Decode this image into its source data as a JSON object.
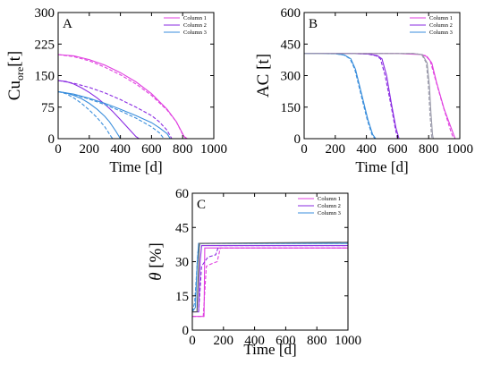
{
  "chart_data": [
    {
      "panel": "A",
      "type": "line",
      "xlabel": "Time [d]",
      "ylabel_main": "Cu",
      "ylabel_sub": "ore",
      "ylabel_unit": "[t]",
      "xlim": [
        0,
        1000
      ],
      "ylim": [
        0,
        300
      ],
      "xticks": [
        "0",
        "200",
        "400",
        "600",
        "800",
        "1000"
      ],
      "yticks": [
        "0",
        "75",
        "150",
        "225",
        "300"
      ],
      "legend_position": "top-right",
      "series": [
        {
          "name": "Column 1",
          "color": "#e040e0",
          "style": "solid",
          "points": [
            [
              0,
              200
            ],
            [
              100,
              197
            ],
            [
              200,
              188
            ],
            [
              300,
              175
            ],
            [
              400,
              157
            ],
            [
              500,
              135
            ],
            [
              600,
              107
            ],
            [
              700,
              70
            ],
            [
              760,
              40
            ],
            [
              810,
              5
            ],
            [
              830,
              0
            ],
            [
              1000,
              0
            ]
          ]
        },
        {
          "name": "Column 1",
          "color": "#e040e0",
          "style": "dashed",
          "points": [
            [
              0,
              200
            ],
            [
              100,
              195
            ],
            [
              200,
              185
            ],
            [
              300,
              170
            ],
            [
              400,
              152
            ],
            [
              500,
              130
            ],
            [
              600,
              103
            ],
            [
              700,
              68
            ],
            [
              760,
              40
            ],
            [
              800,
              10
            ],
            [
              820,
              0
            ],
            [
              1000,
              0
            ]
          ]
        },
        {
          "name": "Column 2",
          "color": "#8a2be2",
          "style": "solid",
          "points": [
            [
              0,
              138
            ],
            [
              50,
              136
            ],
            [
              100,
              130
            ],
            [
              150,
              121
            ],
            [
              200,
              110
            ],
            [
              250,
              97
            ],
            [
              300,
              82
            ],
            [
              350,
              65
            ],
            [
              400,
              45
            ],
            [
              450,
              25
            ],
            [
              500,
              5
            ],
            [
              520,
              0
            ],
            [
              1000,
              0
            ]
          ]
        },
        {
          "name": "Column 2",
          "color": "#8a2be2",
          "style": "dashed",
          "points": [
            [
              0,
              138
            ],
            [
              100,
              132
            ],
            [
              200,
              122
            ],
            [
              300,
              109
            ],
            [
              400,
              93
            ],
            [
              500,
              75
            ],
            [
              600,
              55
            ],
            [
              650,
              40
            ],
            [
              700,
              20
            ],
            [
              730,
              0
            ],
            [
              1000,
              0
            ]
          ]
        },
        {
          "name": "Column 3",
          "color": "#3a8edc",
          "style": "solid",
          "points": [
            [
              0,
              112
            ],
            [
              50,
              109
            ],
            [
              100,
              103
            ],
            [
              150,
              95
            ],
            [
              200,
              84
            ],
            [
              250,
              70
            ],
            [
              300,
              53
            ],
            [
              330,
              40
            ],
            [
              370,
              18
            ],
            [
              400,
              0
            ],
            [
              1000,
              0
            ]
          ]
        },
        {
          "name": "Column 3",
          "color": "#3a8edc",
          "style": "dashed",
          "points": [
            [
              0,
              112
            ],
            [
              50,
              107
            ],
            [
              100,
              97
            ],
            [
              150,
              84
            ],
            [
              200,
              68
            ],
            [
              250,
              50
            ],
            [
              300,
              28
            ],
            [
              340,
              5
            ],
            [
              350,
              0
            ],
            [
              1000,
              0
            ]
          ]
        },
        {
          "name": "Column 3",
          "color": "#3a8edc",
          "style": "solid",
          "points": [
            [
              0,
              112
            ],
            [
              100,
              106
            ],
            [
              200,
              96
            ],
            [
              300,
              84
            ],
            [
              400,
              70
            ],
            [
              500,
              55
            ],
            [
              600,
              38
            ],
            [
              650,
              26
            ],
            [
              700,
              12
            ],
            [
              720,
              0
            ],
            [
              1000,
              0
            ]
          ]
        },
        {
          "name": "Column 3",
          "color": "#3a8edc",
          "style": "dashed",
          "points": [
            [
              0,
              112
            ],
            [
              100,
              105
            ],
            [
              200,
              94
            ],
            [
              300,
              81
            ],
            [
              400,
              66
            ],
            [
              500,
              49
            ],
            [
              600,
              28
            ],
            [
              650,
              14
            ],
            [
              680,
              0
            ],
            [
              1000,
              0
            ]
          ]
        }
      ]
    },
    {
      "panel": "B",
      "type": "line",
      "xlabel": "Time [d]",
      "ylabel_main": "AC",
      "ylabel_sub": "",
      "ylabel_unit": "[t]",
      "xlim": [
        0,
        1000
      ],
      "ylim": [
        0,
        600
      ],
      "xticks": [
        "0",
        "200",
        "400",
        "600",
        "800",
        "1000"
      ],
      "yticks": [
        "0",
        "150",
        "300",
        "450",
        "600"
      ],
      "legend_position": "top-right",
      "series": [
        {
          "name": "Column 1",
          "color": "#e040e0",
          "style": "solid",
          "points": [
            [
              0,
              405
            ],
            [
              600,
              405
            ],
            [
              750,
              400
            ],
            [
              790,
              390
            ],
            [
              820,
              360
            ],
            [
              850,
              270
            ],
            [
              900,
              140
            ],
            [
              950,
              40
            ],
            [
              970,
              0
            ],
            [
              1000,
              0
            ]
          ]
        },
        {
          "name": "Column 1",
          "color": "#e040e0",
          "style": "dashed",
          "points": [
            [
              0,
              405
            ],
            [
              600,
              405
            ],
            [
              740,
              402
            ],
            [
              780,
              395
            ],
            [
              810,
              370
            ],
            [
              840,
              290
            ],
            [
              890,
              160
            ],
            [
              940,
              40
            ],
            [
              960,
              0
            ],
            [
              1000,
              0
            ]
          ]
        },
        {
          "name": "Column 2",
          "color": "#8a2be2",
          "style": "solid",
          "points": [
            [
              0,
              405
            ],
            [
              300,
              405
            ],
            [
              420,
              402
            ],
            [
              470,
              395
            ],
            [
              500,
              380
            ],
            [
              530,
              300
            ],
            [
              560,
              170
            ],
            [
              590,
              50
            ],
            [
              610,
              0
            ],
            [
              1000,
              0
            ]
          ]
        },
        {
          "name": "Column 2",
          "color": "#8a2be2",
          "style": "dashed",
          "points": [
            [
              0,
              405
            ],
            [
              300,
              405
            ],
            [
              410,
              402
            ],
            [
              460,
              395
            ],
            [
              490,
              380
            ],
            [
              520,
              300
            ],
            [
              555,
              170
            ],
            [
              585,
              50
            ],
            [
              600,
              0
            ],
            [
              1000,
              0
            ]
          ]
        },
        {
          "name": "Column 3",
          "color": "#3a8edc",
          "style": "solid",
          "points": [
            [
              0,
              405
            ],
            [
              200,
              404
            ],
            [
              260,
              398
            ],
            [
              300,
              380
            ],
            [
              330,
              330
            ],
            [
              370,
              210
            ],
            [
              410,
              90
            ],
            [
              440,
              20
            ],
            [
              460,
              0
            ],
            [
              1000,
              0
            ]
          ]
        },
        {
          "name": "Column 3",
          "color": "#3a8edc",
          "style": "dashed",
          "points": [
            [
              0,
              405
            ],
            [
              200,
              404
            ],
            [
              255,
              398
            ],
            [
              295,
              380
            ],
            [
              325,
              330
            ],
            [
              365,
              210
            ],
            [
              405,
              90
            ],
            [
              435,
              20
            ],
            [
              455,
              0
            ],
            [
              1000,
              0
            ]
          ]
        },
        {
          "name": "Column 3",
          "color": "#9a9aaa",
          "style": "solid",
          "points": [
            [
              0,
              405
            ],
            [
              700,
              405
            ],
            [
              760,
              400
            ],
            [
              790,
              360
            ],
            [
              805,
              250
            ],
            [
              815,
              120
            ],
            [
              825,
              20
            ],
            [
              830,
              0
            ],
            [
              1000,
              0
            ]
          ]
        },
        {
          "name": "Column 3",
          "color": "#9a9aaa",
          "style": "dashed",
          "points": [
            [
              0,
              405
            ],
            [
              700,
              405
            ],
            [
              755,
              400
            ],
            [
              785,
              360
            ],
            [
              798,
              250
            ],
            [
              808,
              120
            ],
            [
              818,
              20
            ],
            [
              822,
              0
            ],
            [
              1000,
              0
            ]
          ]
        }
      ]
    },
    {
      "panel": "C",
      "type": "line",
      "xlabel": "Time [d]",
      "ylabel_main": "θ",
      "ylabel_sub": "",
      "ylabel_unit": "[%]",
      "xlim": [
        0,
        1000
      ],
      "ylim": [
        0,
        60
      ],
      "xticks": [
        "0",
        "200",
        "400",
        "600",
        "800",
        "1000"
      ],
      "yticks": [
        "0",
        "15",
        "30",
        "45",
        "60"
      ],
      "legend_position": "top-right",
      "series": [
        {
          "name": "Column 1",
          "color": "#e040e0",
          "style": "solid",
          "points": [
            [
              0,
              6
            ],
            [
              75,
              6
            ],
            [
              80,
              36
            ],
            [
              1000,
              36
            ]
          ]
        },
        {
          "name": "Column 1",
          "color": "#e040e0",
          "style": "dashed",
          "points": [
            [
              0,
              6
            ],
            [
              70,
              6
            ],
            [
              90,
              28
            ],
            [
              120,
              29
            ],
            [
              160,
              30
            ],
            [
              180,
              36
            ],
            [
              1000,
              36
            ]
          ]
        },
        {
          "name": "Column 2",
          "color": "#8a2be2",
          "style": "solid",
          "points": [
            [
              0,
              8
            ],
            [
              40,
              8
            ],
            [
              50,
              30
            ],
            [
              60,
              37
            ],
            [
              1000,
              37
            ]
          ]
        },
        {
          "name": "Column 2",
          "color": "#8a2be2",
          "style": "dashed",
          "points": [
            [
              0,
              8
            ],
            [
              40,
              8
            ],
            [
              60,
              28
            ],
            [
              100,
              32
            ],
            [
              150,
              33
            ],
            [
              170,
              37
            ],
            [
              1000,
              37
            ]
          ]
        },
        {
          "name": "Column 3",
          "color": "#3a8edc",
          "style": "solid",
          "points": [
            [
              0,
              8
            ],
            [
              20,
              10
            ],
            [
              30,
              28
            ],
            [
              40,
              38
            ],
            [
              1000,
              38
            ]
          ]
        },
        {
          "name": "Column 3",
          "color": "#3a8edc",
          "style": "dashed",
          "points": [
            [
              0,
              8
            ],
            [
              15,
              12
            ],
            [
              25,
              22
            ],
            [
              35,
              34
            ],
            [
              50,
              38
            ],
            [
              1000,
              38
            ]
          ]
        },
        {
          "name": "Column 3",
          "color": "#555555",
          "style": "solid",
          "points": [
            [
              0,
              8
            ],
            [
              30,
              8
            ],
            [
              45,
              38
            ],
            [
              1000,
              38.5
            ]
          ]
        }
      ]
    }
  ]
}
